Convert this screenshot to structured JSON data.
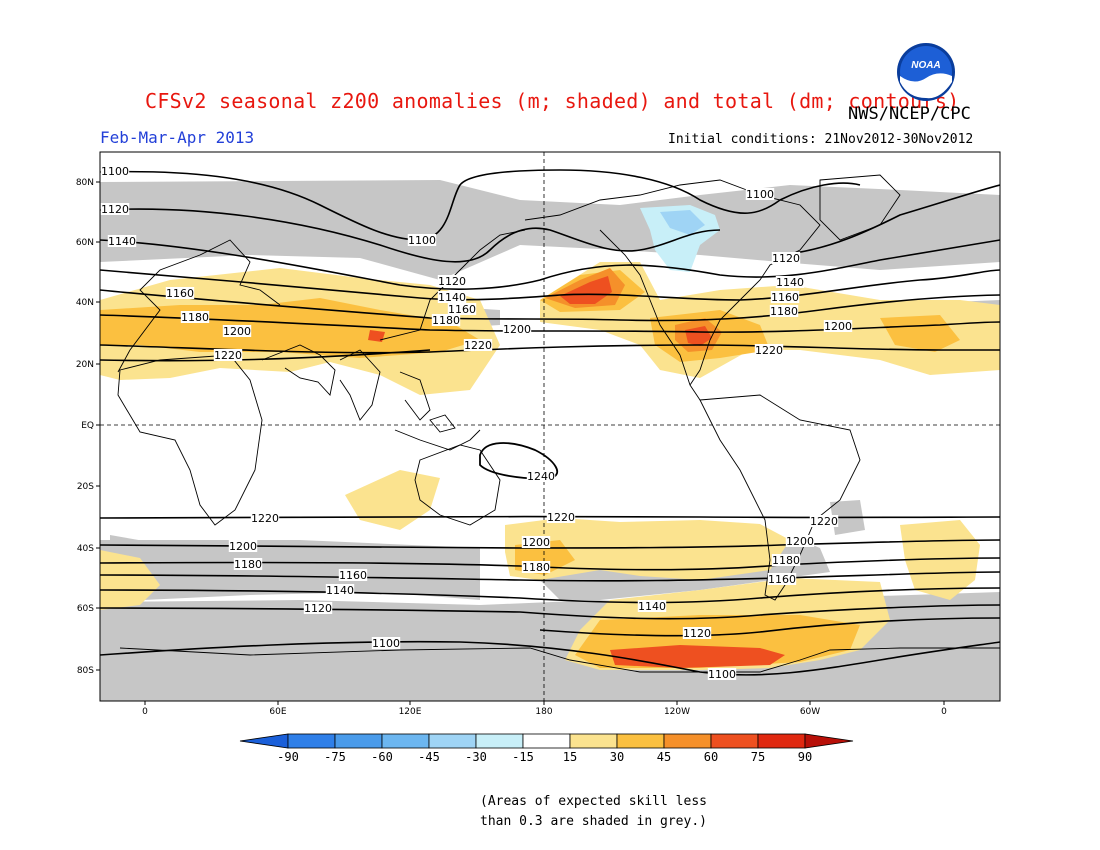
{
  "title": "CFSv2 seasonal z200 anomalies (m; shaded) and total (dm; contours)",
  "agency": "NWS/NCEP/CPC",
  "logo_text": "NOAA",
  "season": "Feb-Mar-Apr 2013",
  "initial_conditions": "Initial conditions: 21Nov2012-30Nov2012",
  "skill_note": {
    "line1": "(Areas of expected skill less",
    "line2": "than 0.3 are shaded in grey.)"
  },
  "latitude_labels": [
    "80N",
    "60N",
    "40N",
    "20N",
    "EQ",
    "20S",
    "40S",
    "60S",
    "80S"
  ],
  "longitude_labels": [
    "0",
    "60E",
    "120E",
    "180",
    "120W",
    "60W",
    "0"
  ],
  "colorbar": {
    "labels": [
      "-90",
      "-75",
      "-60",
      "-45",
      "-30",
      "-15",
      "15",
      "30",
      "45",
      "60",
      "75",
      "90"
    ],
    "colors": [
      "#1a5fd9",
      "#2f7fe8",
      "#4a9bea",
      "#6cb6f0",
      "#9fd4f5",
      "#c8eff8",
      "#ffffff",
      "#fbe38f",
      "#fbc040",
      "#f5902a",
      "#ee5020",
      "#e02810",
      "#b81008"
    ]
  },
  "contour_labels": {
    "north": [
      "1100",
      "1120",
      "1140",
      "1160",
      "1180",
      "1200",
      "1220",
      "1100",
      "1120",
      "1140",
      "1160",
      "1180",
      "1200",
      "1220",
      "1100",
      "1120",
      "1140",
      "1160",
      "1180",
      "1200",
      "1220"
    ],
    "tropics": [
      "1240"
    ],
    "south": [
      "1220",
      "1200",
      "1180",
      "1160",
      "1140",
      "1120",
      "1100",
      "1220",
      "1200",
      "1180",
      "1220",
      "1200",
      "1180",
      "1160",
      "1140",
      "1120",
      "1100"
    ]
  },
  "colors": {
    "title": "#e8170f",
    "season": "#2340d8",
    "skill_grey": "#c6c6c6",
    "contour": "#000000"
  }
}
